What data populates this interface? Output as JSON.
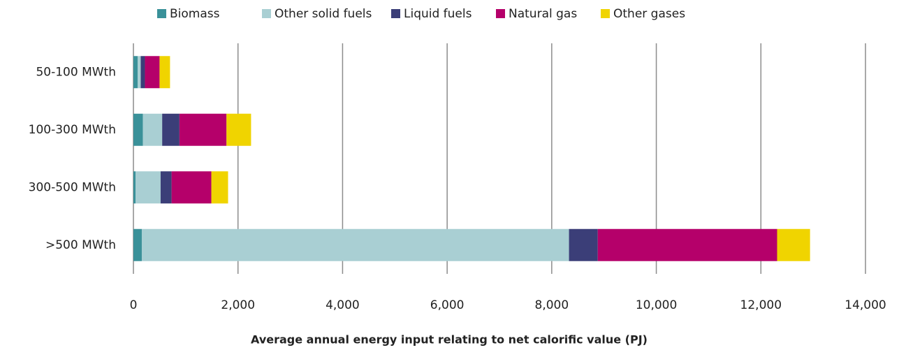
{
  "chart_data": {
    "type": "stacked-barh",
    "xlabel": "Average annual energy input relating to net calorific value (PJ)",
    "categories": [
      "50-100 MWth",
      "100-300 MWth",
      "300-500 MWth",
      ">500 MWth"
    ],
    "series": [
      {
        "name": "Biomass",
        "color": "#3a9199",
        "values": [
          80,
          180,
          40,
          160
        ]
      },
      {
        "name": "Other solid fuels",
        "color": "#a9cfd3",
        "values": [
          60,
          370,
          480,
          8170
        ]
      },
      {
        "name": "Liquid fuels",
        "color": "#3b3e78",
        "values": [
          80,
          330,
          210,
          550
        ]
      },
      {
        "name": "Natural gas",
        "color": "#b5006a",
        "values": [
          280,
          900,
          760,
          3430
        ]
      },
      {
        "name": "Other gases",
        "color": "#f0d400",
        "values": [
          200,
          470,
          320,
          630
        ]
      }
    ],
    "xlim": [
      0,
      14000
    ],
    "xticks": [
      0,
      {
        "value": 2000,
        "label": "2,000"
      },
      {
        "value": 4000,
        "label": "4,000"
      },
      {
        "value": 6000,
        "label": "6,000"
      },
      {
        "value": 8000,
        "label": "8,000"
      },
      {
        "value": 10000,
        "label": "10,000"
      },
      {
        "value": 12000,
        "label": "12,000"
      },
      {
        "value": 14000,
        "label": "14,000"
      }
    ],
    "grid": true,
    "legend": "top"
  }
}
